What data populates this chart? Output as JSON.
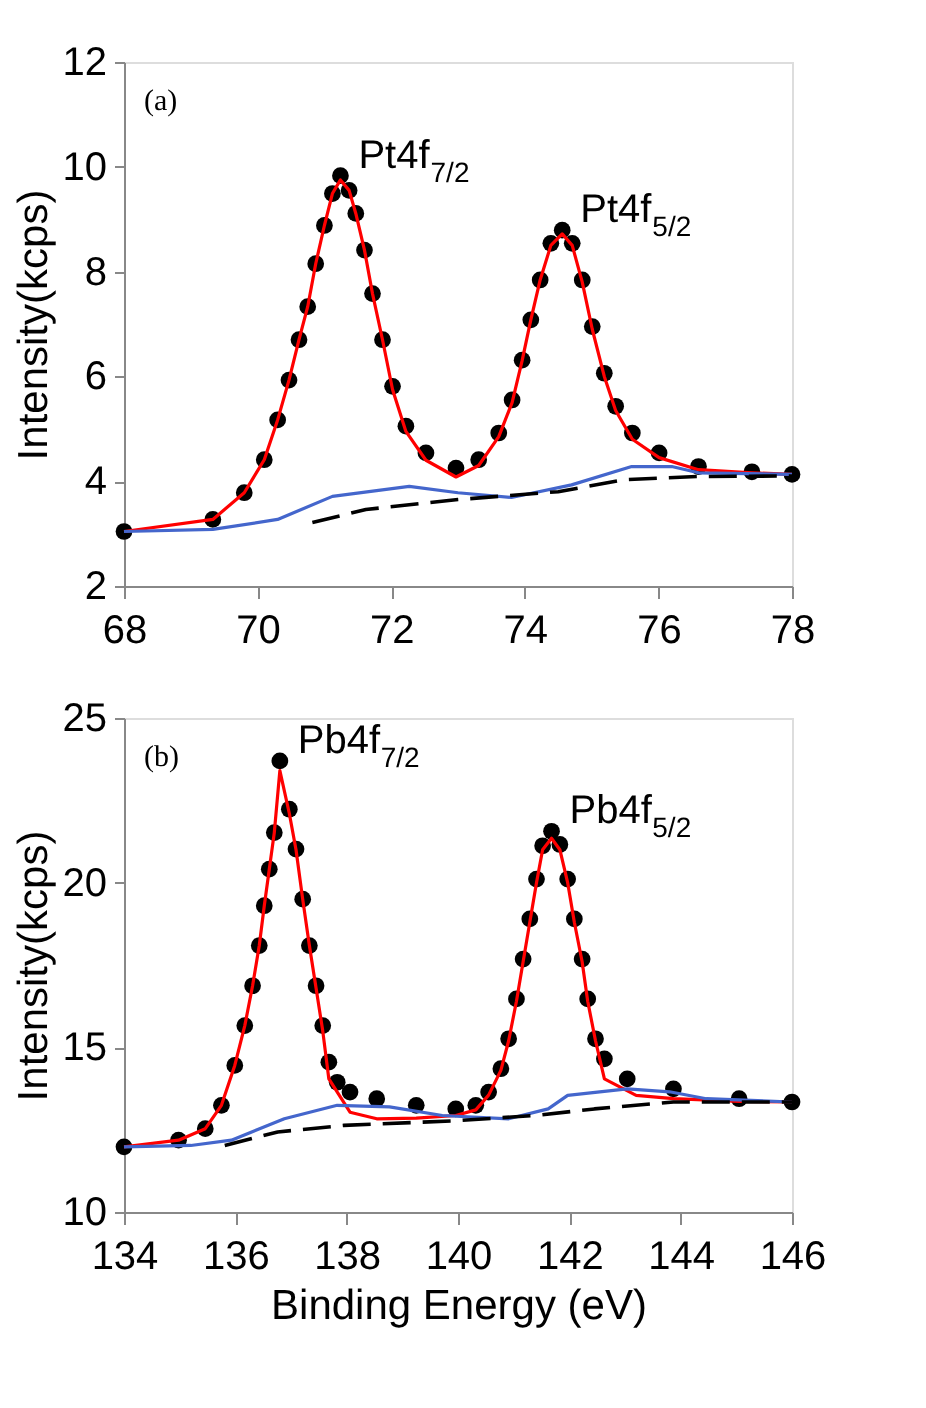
{
  "chart_data": [
    {
      "type": "scatter",
      "ylabel": "Intensity(kcps)",
      "xlim": [
        68,
        78
      ],
      "xticks": [
        68,
        70,
        72,
        74,
        76,
        78
      ],
      "ylim": [
        2,
        12
      ],
      "yticks": [
        2,
        4,
        6,
        8,
        10,
        12
      ],
      "grid": false,
      "annotations": [
        "(a)",
        {
          "text": "Pt4f$_{7/2}$",
          "x": 71.24,
          "y": 9.83
        },
        {
          "text": "Pt4f$_{5/2}$",
          "x": 74.56,
          "y": 8.79
        }
      ],
      "series": [
        {
          "type": "scatter",
          "marker": "circle",
          "color": "#000000",
          "x": [
            68,
            69.33,
            69.8,
            70.1,
            70.3,
            70.47,
            70.62,
            70.75,
            70.87,
            71.0,
            71.12,
            71.24,
            71.37,
            71.47,
            71.6,
            71.72,
            71.87,
            72.02,
            72.22,
            72.52,
            72.97,
            73.31,
            73.61,
            73.81,
            73.96,
            74.09,
            74.23,
            74.39,
            74.56,
            74.71,
            74.86,
            75.01,
            75.19,
            75.36,
            75.61,
            76.01,
            76.6,
            77.4,
            78
          ],
          "values": [
            3.04,
            3.27,
            3.78,
            4.41,
            5.17,
            5.93,
            6.7,
            7.33,
            8.15,
            8.88,
            9.49,
            9.83,
            9.55,
            9.11,
            8.41,
            7.58,
            6.7,
            5.81,
            5.05,
            4.54,
            4.25,
            4.41,
            4.92,
            5.55,
            6.31,
            7.08,
            7.84,
            8.54,
            8.79,
            8.54,
            7.84,
            6.95,
            6.06,
            5.43,
            4.92,
            4.54,
            4.28,
            4.18,
            4.13
          ]
        },
        {
          "type": "line",
          "color": "#ff0000",
          "line_style": "solid",
          "x": [
            68,
            69.33,
            69.8,
            70.1,
            70.3,
            70.47,
            70.62,
            70.75,
            70.87,
            71.0,
            71.12,
            71.24,
            71.37,
            71.47,
            71.6,
            71.72,
            71.87,
            72.02,
            72.22,
            72.52,
            72.97,
            73.31,
            73.61,
            73.81,
            73.96,
            74.09,
            74.23,
            74.39,
            74.56,
            74.71,
            74.86,
            75.01,
            75.19,
            75.36,
            75.61,
            76.01,
            76.6,
            77.4,
            78
          ],
          "values": [
            3.04,
            3.27,
            3.78,
            4.41,
            5.17,
            5.93,
            6.7,
            7.33,
            8.15,
            8.88,
            9.49,
            9.75,
            9.55,
            9.11,
            8.41,
            7.58,
            6.7,
            5.75,
            4.95,
            4.4,
            4.08,
            4.3,
            4.85,
            5.5,
            6.3,
            7.08,
            7.84,
            8.5,
            8.72,
            8.5,
            7.8,
            6.9,
            6.0,
            5.35,
            4.8,
            4.45,
            4.22,
            4.16,
            4.13
          ]
        },
        {
          "type": "line",
          "color": "#4466cc",
          "line_style": "solid",
          "x": [
            68,
            69.33,
            70.3,
            71.12,
            72.27,
            73.0,
            73.8,
            74.7,
            75.6,
            76.2,
            76.6,
            78
          ],
          "values": [
            3.04,
            3.08,
            3.27,
            3.71,
            3.9,
            3.78,
            3.69,
            3.93,
            4.28,
            4.28,
            4.16,
            4.13
          ]
        },
        {
          "type": "line",
          "color": "#000000",
          "line_style": "dashed",
          "x": [
            70.82,
            71.62,
            73.0,
            74.5,
            75.5,
            76.6,
            78
          ],
          "values": [
            3.21,
            3.46,
            3.65,
            3.8,
            4.03,
            4.09,
            4.1
          ]
        }
      ]
    },
    {
      "type": "scatter",
      "xlabel": "Binding Energy (eV)",
      "ylabel": "Intensity(kcps)",
      "xlim": [
        134,
        146
      ],
      "xticks": [
        134,
        136,
        138,
        140,
        142,
        144,
        146
      ],
      "ylim": [
        10,
        25
      ],
      "yticks": [
        10,
        15,
        20,
        25
      ],
      "grid": false,
      "annotations": [
        "(b)",
        {
          "text": "Pb4f$_{7/2}$",
          "x": 136.8,
          "y": 23.7
        },
        {
          "text": "Pb4f$_{5/2}$",
          "x": 141.68,
          "y": 21.56
        }
      ],
      "series": [
        {
          "type": "scatter",
          "marker": "circle",
          "color": "#000000",
          "x": [
            134,
            134.98,
            135.46,
            135.75,
            135.99,
            136.17,
            136.31,
            136.43,
            136.52,
            136.61,
            136.7,
            136.8,
            136.97,
            137.09,
            137.21,
            137.33,
            137.45,
            137.57,
            137.68,
            137.83,
            138.06,
            138.54,
            139.25,
            139.96,
            140.32,
            140.55,
            140.77,
            140.91,
            141.05,
            141.17,
            141.29,
            141.41,
            141.52,
            141.68,
            141.83,
            141.97,
            142.09,
            142.23,
            142.33,
            142.47,
            142.63,
            143.04,
            143.87,
            145.05,
            146
          ],
          "values": [
            11.98,
            12.18,
            12.53,
            13.24,
            14.45,
            15.66,
            16.87,
            18.09,
            19.3,
            20.41,
            21.52,
            23.7,
            22.23,
            21.02,
            19.5,
            18.09,
            16.87,
            15.66,
            14.55,
            13.94,
            13.64,
            13.44,
            13.24,
            13.13,
            13.24,
            13.64,
            14.35,
            15.26,
            16.47,
            17.68,
            18.9,
            20.11,
            21.12,
            21.56,
            21.16,
            20.11,
            18.9,
            17.68,
            16.47,
            15.26,
            14.65,
            14.04,
            13.74,
            13.44,
            13.34
          ]
        },
        {
          "type": "line",
          "color": "#ff0000",
          "line_style": "solid",
          "x": [
            134,
            134.98,
            135.46,
            135.75,
            135.99,
            136.17,
            136.31,
            136.43,
            136.52,
            136.61,
            136.7,
            136.8,
            136.97,
            137.09,
            137.21,
            137.33,
            137.45,
            137.57,
            137.68,
            138.06,
            138.54,
            139.25,
            139.96,
            140.32,
            140.55,
            140.77,
            140.91,
            141.05,
            141.17,
            141.29,
            141.41,
            141.52,
            141.68,
            141.83,
            141.97,
            142.09,
            142.23,
            142.33,
            142.47,
            142.63,
            143.2,
            143.87,
            145.05,
            146
          ],
          "values": [
            11.98,
            12.18,
            12.53,
            13.24,
            14.45,
            15.66,
            16.87,
            18.09,
            19.3,
            20.41,
            21.52,
            23.4,
            22.1,
            21.0,
            19.5,
            18.09,
            16.8,
            15.5,
            14.04,
            13.03,
            12.83,
            12.85,
            12.93,
            13.1,
            13.55,
            14.3,
            15.2,
            16.4,
            17.6,
            18.8,
            20.0,
            21.0,
            21.35,
            21.0,
            20.0,
            18.8,
            17.6,
            16.4,
            15.2,
            14.04,
            13.54,
            13.44,
            13.36,
            13.34
          ]
        },
        {
          "type": "line",
          "color": "#4466cc",
          "line_style": "solid",
          "x": [
            134,
            135.2,
            135.93,
            136.88,
            137.83,
            138.77,
            139.72,
            140.91,
            141.62,
            141.97,
            143.04,
            143.8,
            144.46,
            146
          ],
          "values": [
            11.98,
            12.02,
            12.18,
            12.83,
            13.24,
            13.19,
            12.93,
            12.83,
            13.13,
            13.54,
            13.74,
            13.65,
            13.44,
            13.34
          ]
        },
        {
          "type": "line",
          "color": "#000000",
          "line_style": "dashed",
          "x": [
            135.81,
            136.76,
            137.95,
            139.96,
            141.38,
            142.45,
            143.87,
            146
          ],
          "values": [
            12.02,
            12.43,
            12.63,
            12.77,
            12.93,
            13.13,
            13.34,
            13.34
          ]
        }
      ]
    }
  ]
}
